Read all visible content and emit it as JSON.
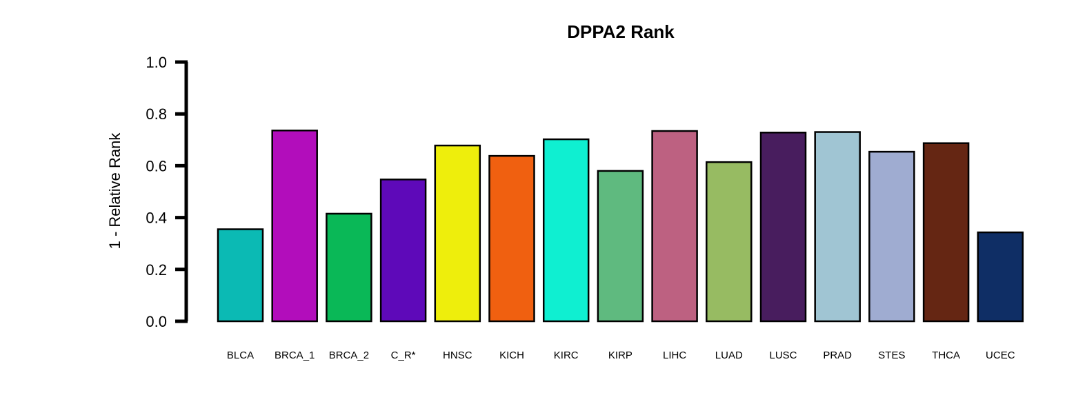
{
  "chart_data": {
    "type": "bar",
    "title": "DPPA2 Rank",
    "xlabel": "",
    "ylabel": "1 - Relative Rank",
    "ylim": [
      0,
      1
    ],
    "yticks": [
      "0.0",
      "0.2",
      "0.4",
      "0.6",
      "0.8",
      "1.0"
    ],
    "grid": false,
    "legend": "none",
    "categories": [
      "BLCA",
      "BRCA_1",
      "BRCA_2",
      "C_R*",
      "HNSC",
      "KICH",
      "KIRC",
      "KIRP",
      "LIHC",
      "LUAD",
      "LUSC",
      "PRAD",
      "STES",
      "THCA",
      "UCEC"
    ],
    "values": [
      0.355,
      0.736,
      0.415,
      0.547,
      0.678,
      0.638,
      0.702,
      0.58,
      0.734,
      0.614,
      0.728,
      0.73,
      0.654,
      0.687,
      0.343
    ],
    "colors": [
      "#0BBAB4",
      "#B20DBB",
      "#0AB857",
      "#5E09B9",
      "#EEEE0C",
      "#F06010",
      "#0FEFD1",
      "#5FBA7F",
      "#BD6181",
      "#97BB62",
      "#481D5E",
      "#A0C5D3",
      "#9FACD1",
      "#652613",
      "#0F2E65"
    ]
  }
}
